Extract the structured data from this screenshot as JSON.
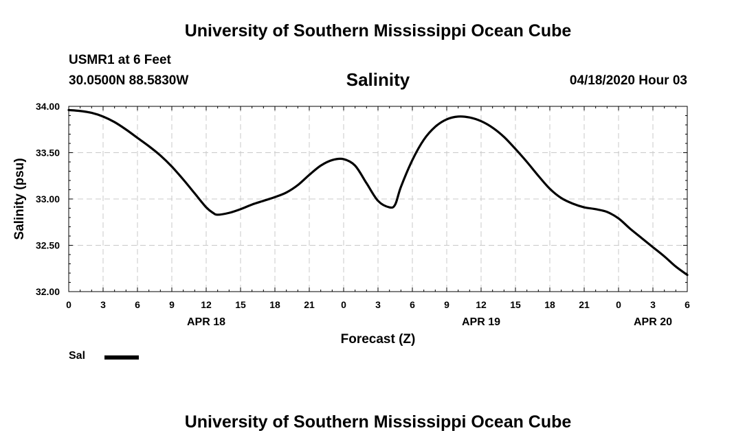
{
  "header": {
    "title": "University of Southern Mississippi Ocean Cube",
    "station": "USMR1 at 6 Feet",
    "coords": "30.0500N 88.5830W",
    "datetime": "04/18/2020 Hour 03"
  },
  "footer": {
    "title": "University of Southern Mississippi Ocean Cube"
  },
  "chart_data": {
    "type": "line",
    "title": "Salinity",
    "xlabel": "Forecast (Z)",
    "ylabel": "Salinity (psu)",
    "ylim": [
      32.0,
      34.0
    ],
    "xlim": [
      0,
      54
    ],
    "x_unit": "forecast hours from 04/18/2020 00Z",
    "y_ticks": [
      "32.00",
      "32.50",
      "33.00",
      "33.50",
      "34.00"
    ],
    "x_tick_labels": [
      "0",
      "3",
      "6",
      "9",
      "12",
      "15",
      "18",
      "21",
      "0",
      "3",
      "6",
      "9",
      "12",
      "15",
      "18",
      "21",
      "0",
      "3",
      "6"
    ],
    "date_labels": [
      {
        "label": "APR 18",
        "hour": 12
      },
      {
        "label": "APR 19",
        "hour": 36
      },
      {
        "label": "APR 20",
        "hour": 51
      }
    ],
    "grid": true,
    "legend_position": "bottom-left",
    "series": [
      {
        "name": "Sal",
        "color": "#000000",
        "x": [
          0,
          1,
          2,
          3,
          4,
          5,
          6,
          7,
          8,
          9,
          10,
          11,
          12,
          12.6,
          13,
          14,
          15,
          16,
          17,
          18,
          19,
          20,
          21,
          22,
          23,
          24,
          25,
          26,
          27,
          28,
          28.5,
          29,
          30,
          31,
          32,
          33,
          34,
          35,
          36,
          37,
          38,
          39,
          40,
          41,
          42,
          43,
          44,
          45,
          46,
          47,
          48,
          49,
          50,
          51,
          52,
          53,
          54
        ],
        "values": [
          33.96,
          33.95,
          33.93,
          33.89,
          33.83,
          33.75,
          33.66,
          33.57,
          33.47,
          33.35,
          33.21,
          33.06,
          32.91,
          32.85,
          32.83,
          32.85,
          32.89,
          32.94,
          32.98,
          33.02,
          33.07,
          33.15,
          33.26,
          33.36,
          33.42,
          33.43,
          33.36,
          33.17,
          32.98,
          32.91,
          32.94,
          33.13,
          33.42,
          33.64,
          33.78,
          33.86,
          33.89,
          33.88,
          33.84,
          33.77,
          33.67,
          33.54,
          33.4,
          33.25,
          33.11,
          33.01,
          32.95,
          32.91,
          32.89,
          32.86,
          32.79,
          32.68,
          32.58,
          32.48,
          32.38,
          32.27,
          32.18
        ]
      }
    ]
  }
}
